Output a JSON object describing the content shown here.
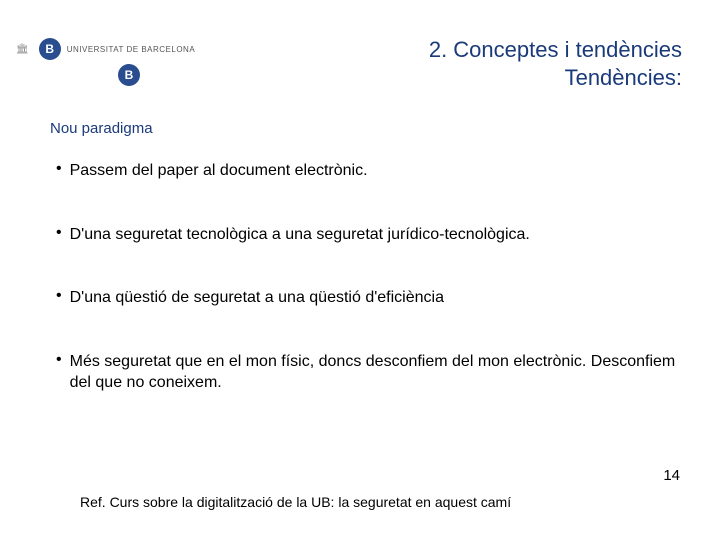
{
  "header": {
    "uni_label": "UNIVERSITAT DE BARCELONA",
    "logo_letter": "B"
  },
  "title": {
    "line1": "2. Conceptes i tendències",
    "line2": "Tendències:"
  },
  "subtitle": "Nou paradigma",
  "bullets": [
    "Passem del paper al document electrònic.",
    "D'una seguretat tecnològica a una seguretat jurídico-tecnològica.",
    "D'una qüestió de seguretat a una qüestió d'eficiència",
    "Més seguretat que en el mon físic, doncs desconfiem del mon electrònic. Desconfiem del que no coneixem."
  ],
  "footer_ref": "Ref. Curs sobre la digitalització de la UB: la seguretat en aquest camí",
  "page_number": "14",
  "colors": {
    "title_color": "#1a3a7a",
    "text_color": "#000000",
    "logo_bg": "#2a4d8f",
    "background": "#ffffff"
  },
  "typography": {
    "title_fontsize": 22,
    "subtitle_fontsize": 15,
    "bullet_fontsize": 16,
    "footer_fontsize": 14
  }
}
